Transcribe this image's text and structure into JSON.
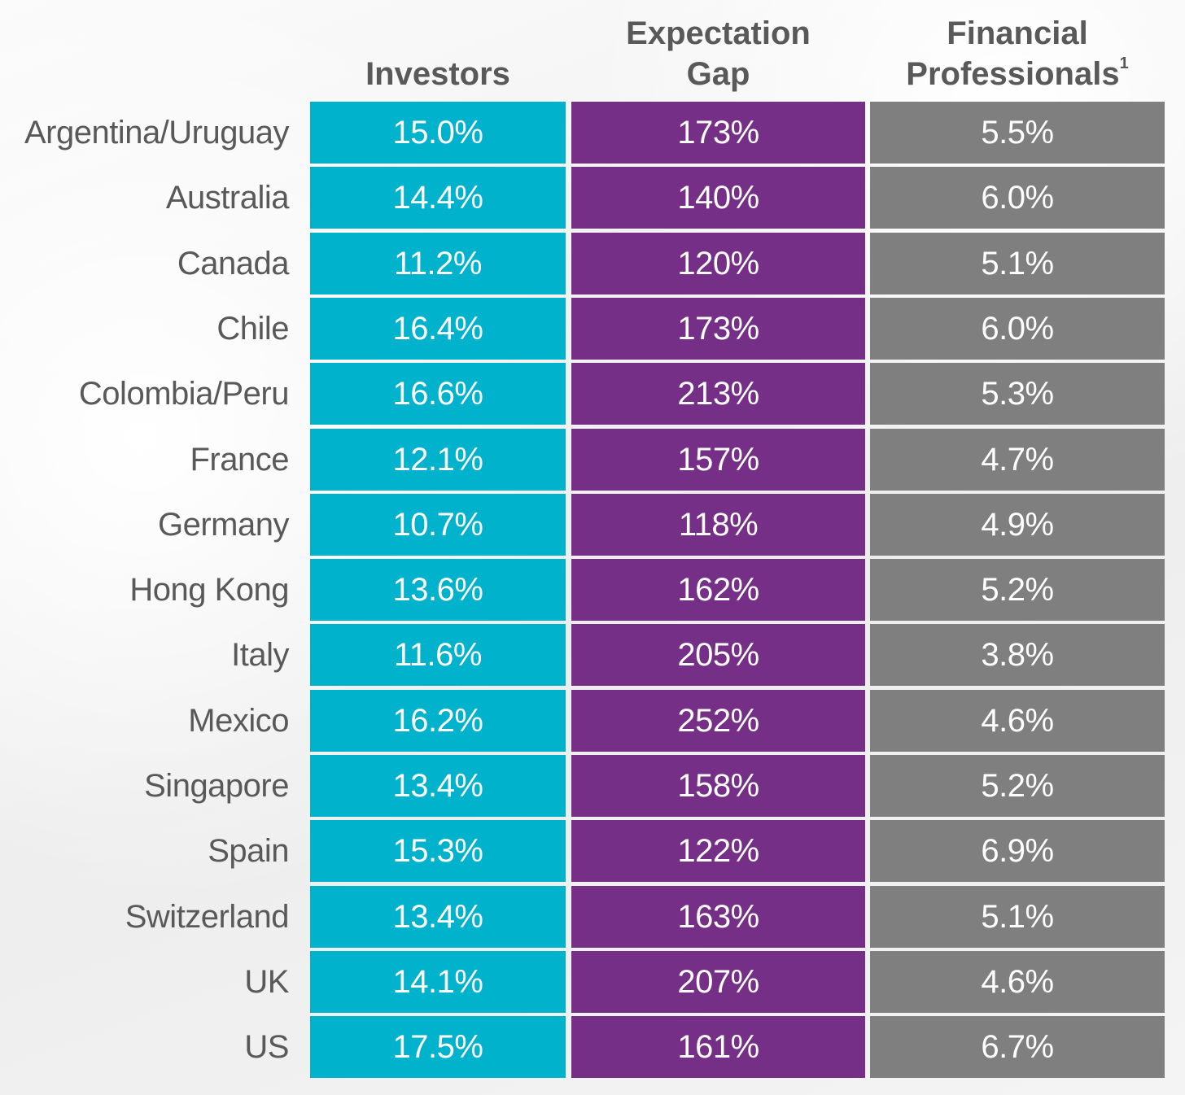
{
  "colors": {
    "investors": "#00B2CC",
    "gap": "#762F87",
    "professionals": "#7F7F7F",
    "text": "#595959",
    "cell_text": "#FFFFFF"
  },
  "chart_data": {
    "type": "table",
    "columns": [
      {
        "key": "investors",
        "label_lines": [
          "Investors"
        ],
        "sup": ""
      },
      {
        "key": "gap",
        "label_lines": [
          "Expectation",
          "Gap"
        ],
        "sup": ""
      },
      {
        "key": "professionals",
        "label_lines": [
          "Financial",
          "Professionals"
        ],
        "sup": "1"
      }
    ],
    "rows": [
      {
        "country": "Argentina/Uruguay",
        "investors": "15.0%",
        "gap": "173%",
        "professionals": "5.5%"
      },
      {
        "country": "Australia",
        "investors": "14.4%",
        "gap": "140%",
        "professionals": "6.0%"
      },
      {
        "country": "Canada",
        "investors": "11.2%",
        "gap": "120%",
        "professionals": "5.1%"
      },
      {
        "country": "Chile",
        "investors": "16.4%",
        "gap": "173%",
        "professionals": "6.0%"
      },
      {
        "country": "Colombia/Peru",
        "investors": "16.6%",
        "gap": "213%",
        "professionals": "5.3%"
      },
      {
        "country": "France",
        "investors": "12.1%",
        "gap": "157%",
        "professionals": "4.7%"
      },
      {
        "country": "Germany",
        "investors": "10.7%",
        "gap": "118%",
        "professionals": "4.9%"
      },
      {
        "country": "Hong Kong",
        "investors": "13.6%",
        "gap": "162%",
        "professionals": "5.2%"
      },
      {
        "country": "Italy",
        "investors": "11.6%",
        "gap": "205%",
        "professionals": "3.8%"
      },
      {
        "country": "Mexico",
        "investors": "16.2%",
        "gap": "252%",
        "professionals": "4.6%"
      },
      {
        "country": "Singapore",
        "investors": "13.4%",
        "gap": "158%",
        "professionals": "5.2%"
      },
      {
        "country": "Spain",
        "investors": "15.3%",
        "gap": "122%",
        "professionals": "6.9%"
      },
      {
        "country": "Switzerland",
        "investors": "13.4%",
        "gap": "163%",
        "professionals": "5.1%"
      },
      {
        "country": "UK",
        "investors": "14.1%",
        "gap": "207%",
        "professionals": "4.6%"
      },
      {
        "country": "US",
        "investors": "17.5%",
        "gap": "161%",
        "professionals": "6.7%"
      }
    ]
  }
}
